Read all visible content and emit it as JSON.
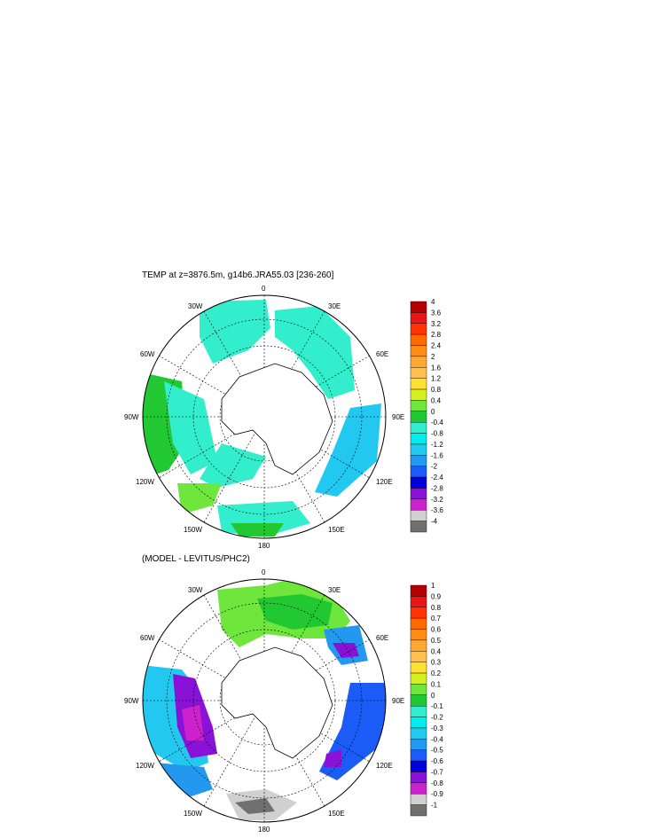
{
  "panels": [
    {
      "title": "TEMP at z=3876.5m, g14b6.JRA55.03 [236-260]",
      "map_labels": {
        "top": "0",
        "bottom": "180",
        "left": "90W",
        "right": "90E",
        "w30": "30W",
        "e30": "30E",
        "w60": "60W",
        "e60": "60E",
        "w120": "120W",
        "e120": "120E",
        "w150": "150W",
        "e150": "150E"
      },
      "colorbar": {
        "labels": [
          "4",
          "3.6",
          "3.2",
          "2.8",
          "2.4",
          "2",
          "1.6",
          "1.2",
          "0.8",
          "0.4",
          "0",
          "-0.4",
          "-0.8",
          "-1.2",
          "-1.6",
          "-2",
          "-2.4",
          "-2.8",
          "-3.2",
          "-3.6",
          "-4"
        ],
        "colors": [
          "#b40000",
          "#e51717",
          "#ff3300",
          "#ff6a00",
          "#ff8c1a",
          "#ffa833",
          "#ffc04d",
          "#ffe033",
          "#d4f020",
          "#6ee63c",
          "#22c832",
          "#33eecc",
          "#00eeee",
          "#22c8f0",
          "#2299ee",
          "#1a5cf5",
          "#0000dd",
          "#8a12d6",
          "#cc22cc",
          "#d0d0d0",
          "#707070"
        ]
      }
    },
    {
      "title": "(MODEL - LEVITUS/PHC2)",
      "map_labels": {
        "top": "0",
        "bottom": "180",
        "left": "90W",
        "right": "90E",
        "w30": "30W",
        "e30": "30E",
        "w60": "60W",
        "e60": "60E",
        "w120": "120W",
        "e120": "120E",
        "w150": "150W",
        "e150": "150E"
      },
      "colorbar": {
        "labels": [
          "1",
          "0.9",
          "0.8",
          "0.7",
          "0.6",
          "0.5",
          "0.4",
          "0.3",
          "0.2",
          "0.1",
          "0",
          "-0.1",
          "-0.2",
          "-0.3",
          "-0.4",
          "-0.5",
          "-0.6",
          "-0.7",
          "-0.8",
          "-0.9",
          "-1"
        ],
        "colors": [
          "#b40000",
          "#e51717",
          "#ff3300",
          "#ff6a00",
          "#ff8c1a",
          "#ffa833",
          "#ffc04d",
          "#ffe033",
          "#d4f020",
          "#6ee63c",
          "#22c832",
          "#33eecc",
          "#00eeee",
          "#22c8f0",
          "#2299ee",
          "#1a5cf5",
          "#0000dd",
          "#8a12d6",
          "#cc22cc",
          "#d0d0d0",
          "#707070"
        ]
      }
    }
  ]
}
